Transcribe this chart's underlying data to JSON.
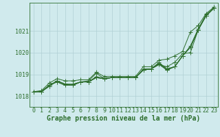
{
  "title": "Graphe pression niveau de la mer (hPa)",
  "background_color": "#d0eaed",
  "grid_color": "#b0cfd4",
  "line_color": "#2d6e2d",
  "marker_color": "#2d6e2d",
  "xlim": [
    -0.5,
    23.5
  ],
  "ylim": [
    1017.5,
    1022.3
  ],
  "yticks": [
    1018,
    1019,
    1020,
    1021
  ],
  "ytick_labels": [
    "1018",
    "1019",
    "1020",
    "1021"
  ],
  "xticks": [
    0,
    1,
    2,
    3,
    4,
    5,
    6,
    7,
    8,
    9,
    10,
    11,
    12,
    13,
    14,
    15,
    16,
    17,
    18,
    19,
    20,
    21,
    22,
    23
  ],
  "series": [
    [
      1018.2,
      1018.2,
      1018.45,
      1018.7,
      1018.55,
      1018.55,
      1018.65,
      1018.7,
      1019.05,
      1018.8,
      1018.85,
      1018.85,
      1018.85,
      1018.85,
      1019.25,
      1019.25,
      1019.55,
      1019.25,
      1019.35,
      1019.85,
      1020.3,
      1021.1,
      1021.75,
      1022.05
    ],
    [
      1018.2,
      1018.2,
      1018.45,
      1018.7,
      1018.55,
      1018.5,
      1018.65,
      1018.65,
      1018.9,
      1018.8,
      1018.85,
      1018.85,
      1018.85,
      1018.85,
      1019.2,
      1019.25,
      1019.5,
      1019.25,
      1019.35,
      1019.85,
      1020.25,
      1021.05,
      1021.7,
      1022.05
    ],
    [
      1018.2,
      1018.2,
      1018.5,
      1018.7,
      1018.55,
      1018.5,
      1018.65,
      1018.65,
      1018.85,
      1018.8,
      1018.85,
      1018.85,
      1018.85,
      1018.85,
      1019.2,
      1019.25,
      1019.5,
      1019.2,
      1019.35,
      1019.85,
      1020.25,
      1021.05,
      1021.7,
      1022.05
    ],
    [
      1018.2,
      1018.2,
      1018.5,
      1018.65,
      1018.5,
      1018.5,
      1018.65,
      1018.65,
      1018.85,
      1018.8,
      1018.85,
      1018.85,
      1018.85,
      1018.85,
      1019.2,
      1019.25,
      1019.45,
      1019.2,
      1019.35,
      1019.85,
      1020.25,
      1021.05,
      1021.7,
      1022.05
    ],
    [
      1018.2,
      1018.2,
      1018.5,
      1018.65,
      1018.5,
      1018.5,
      1018.65,
      1018.65,
      1018.85,
      1018.8,
      1018.85,
      1018.85,
      1018.85,
      1018.85,
      1019.2,
      1019.25,
      1019.45,
      1019.35,
      1019.55,
      1019.95,
      1020.0,
      1021.05,
      1021.7,
      1022.05
    ]
  ],
  "upper_series": [
    1018.2,
    1018.25,
    1018.6,
    1018.8,
    1018.7,
    1018.7,
    1018.75,
    1018.75,
    1019.1,
    1018.9,
    1018.9,
    1018.9,
    1018.9,
    1018.9,
    1019.35,
    1019.35,
    1019.65,
    1019.7,
    1019.85,
    1020.05,
    1020.95,
    1021.25,
    1021.8,
    1022.1
  ],
  "xlabel_fontsize": 7.0,
  "tick_fontsize": 6.0,
  "marker_size": 2.2,
  "linewidth": 0.7
}
